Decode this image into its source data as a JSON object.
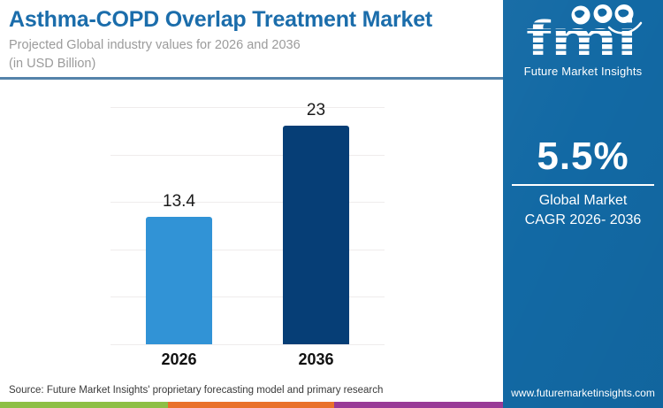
{
  "header": {
    "title": "Asthma-COPD Overlap Treatment Market",
    "subtitle_line1": "Projected Global industry values for 2026 and 2036",
    "subtitle_line2": "(in USD Billion)"
  },
  "chart_data": {
    "type": "bar",
    "categories": [
      "2026",
      "2036"
    ],
    "values": [
      13.4,
      23
    ],
    "title": "Asthma-COPD Overlap Treatment Market",
    "xlabel": "",
    "ylabel": "USD Billion",
    "ylim": [
      0,
      25
    ],
    "gridline_step": 5,
    "grid": true,
    "legend": "none",
    "bar_colors": [
      "#3193d6",
      "#063e76"
    ]
  },
  "panel": {
    "logo_word": "fmi",
    "logo_name": "Future Market Insights",
    "globe_icons": [
      "americas-globe-icon",
      "europe-africa-globe-icon",
      "asia-pacific-globe-icon"
    ],
    "cagr_value": "5.5%",
    "cagr_label_line1": "Global Market",
    "cagr_label_line2": "CAGR 2026- 2036",
    "website": "www.futuremarketinsights.com"
  },
  "footer": {
    "source": "Source: Future Market Insights' proprietary forecasting model and primary research",
    "stripe_colors": [
      "#8dbf45",
      "#e9712b",
      "#983a96"
    ]
  },
  "colors": {
    "title_blue": "#1b6dab",
    "subtitle_gray": "#9b9b9b",
    "header_divider": "#5583aa",
    "panel_blue": "#1269a4",
    "bar_light_blue": "#3193d6",
    "bar_dark_navy": "#063e76"
  }
}
